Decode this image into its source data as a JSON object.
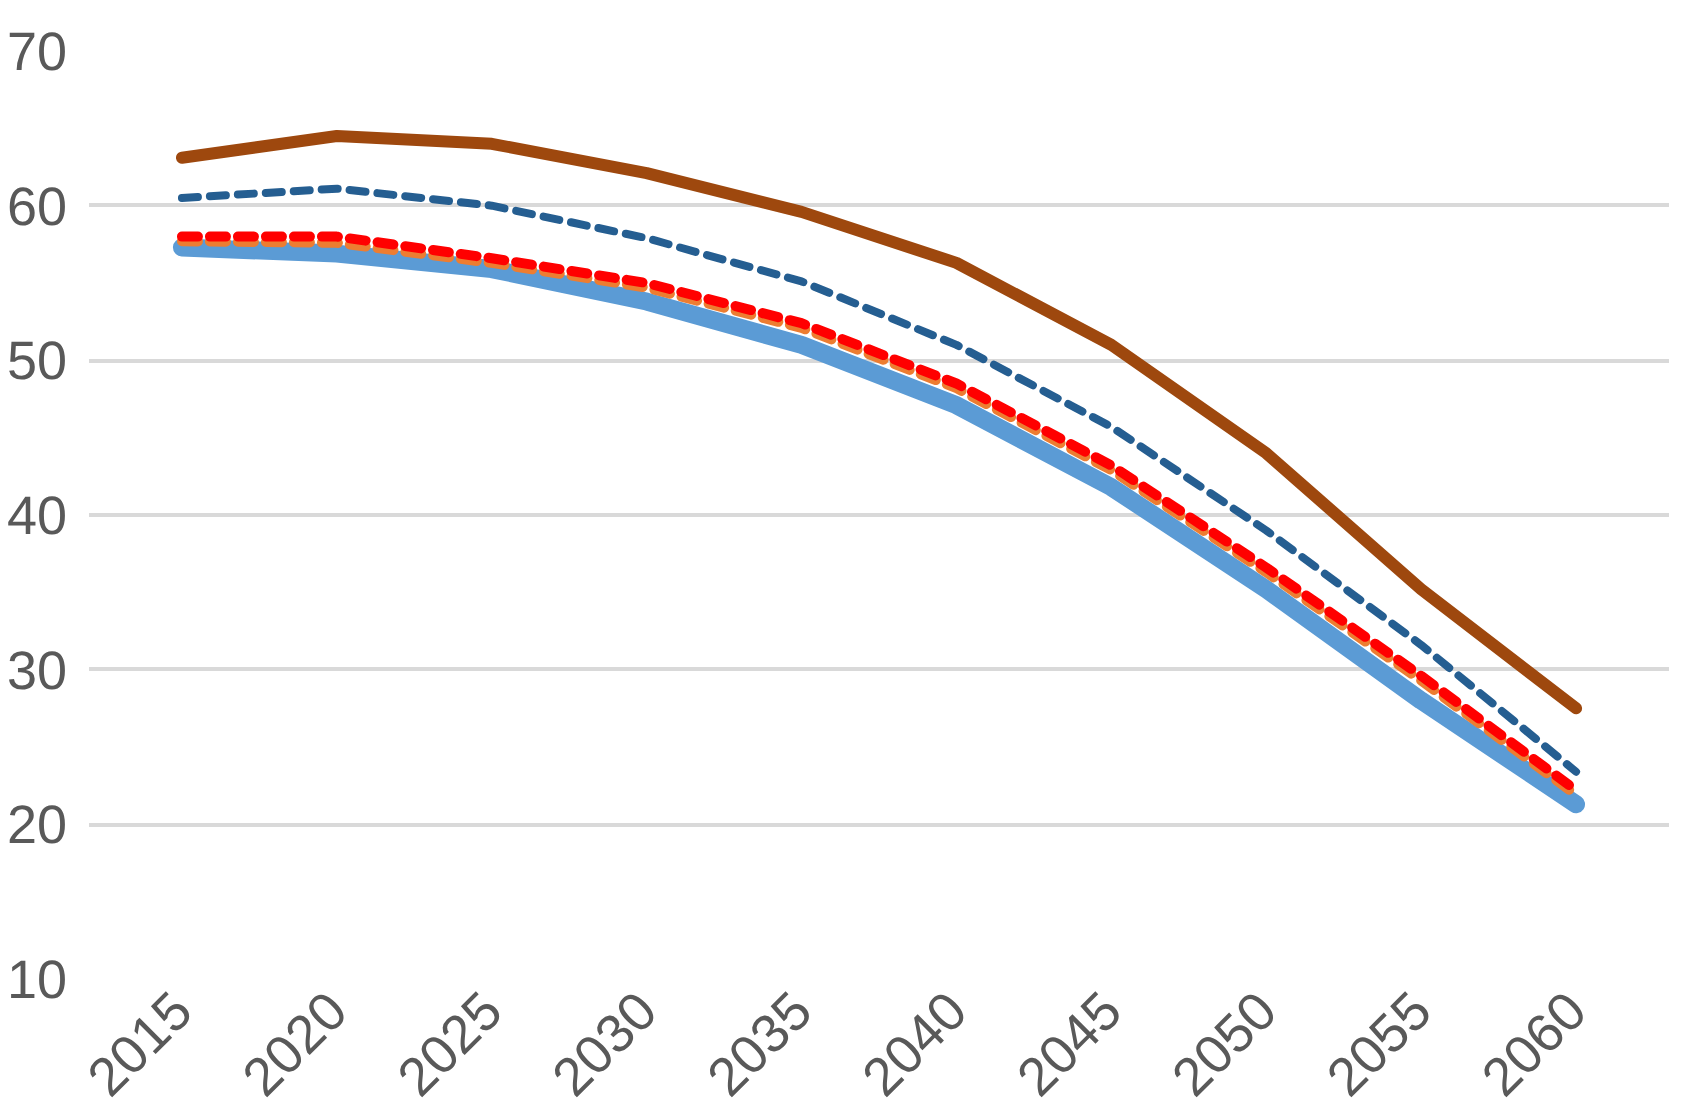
{
  "chart_data": {
    "type": "line",
    "x": [
      2015,
      2020,
      2025,
      2030,
      2035,
      2040,
      2045,
      2050,
      2055,
      2060
    ],
    "xlim": [
      2012,
      2063
    ],
    "xticks": [
      2015,
      2020,
      2025,
      2030,
      2035,
      2040,
      2045,
      2050,
      2055,
      2060
    ],
    "ylim": [
      10,
      70
    ],
    "yticks": [
      10,
      20,
      30,
      40,
      50,
      60,
      70
    ],
    "grid": "y",
    "series": [
      {
        "color": "#5b9bd5",
        "line_style": "solid",
        "values": [
          57.3,
          56.9,
          55.9,
          53.8,
          51,
          47.1,
          41.8,
          35.2,
          28,
          21.3
        ]
      },
      {
        "color": "#ed7d31",
        "line_style": "dashed",
        "values": [
          57.7,
          57.6,
          56.3,
          54.7,
          52.1,
          48.2,
          42.9,
          36.3,
          29.3,
          21.9
        ]
      },
      {
        "color": "#ff0000",
        "line_style": "dashed",
        "values": [
          58,
          58,
          56.6,
          55,
          52.4,
          48.5,
          43.2,
          36.6,
          29.6,
          22.2
        ]
      },
      {
        "color": "#255e91",
        "line_style": "dashed",
        "values": [
          60.5,
          61.1,
          60,
          57.9,
          55.1,
          51,
          45.7,
          39,
          31.6,
          23.4
        ]
      },
      {
        "color": "#9e480e",
        "line_style": "solid",
        "values": [
          63.1,
          64.5,
          64,
          62.1,
          59.6,
          56.3,
          51,
          44,
          35.2,
          27.5
        ]
      }
    ]
  }
}
